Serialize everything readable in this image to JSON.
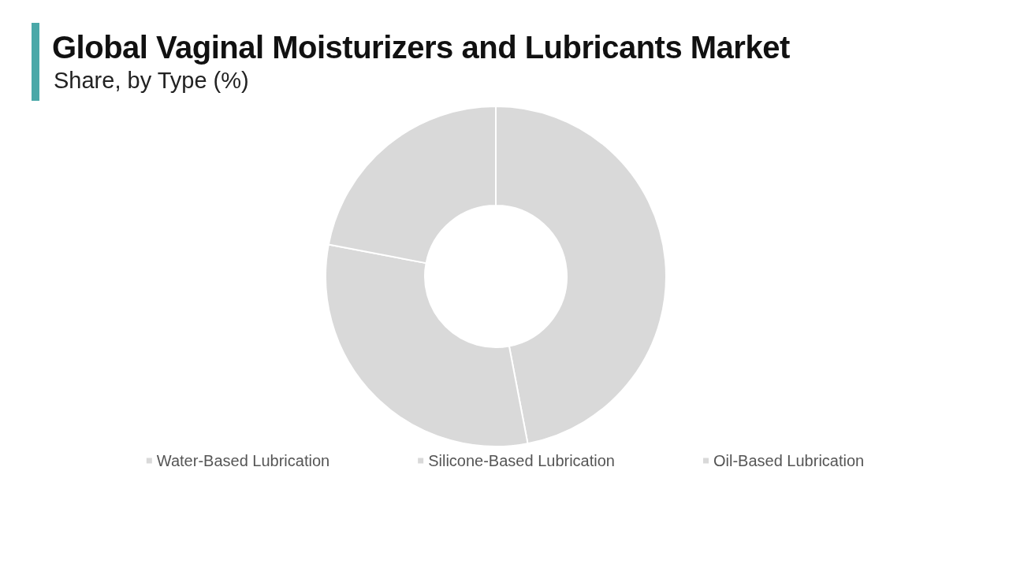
{
  "chart_data": {
    "type": "donut",
    "title": "Global Vaginal Moisturizers and Lubricants Market",
    "subtitle": "Share, by Type (%)",
    "categories": [
      "Water-Based Lubrication",
      "Silicone-Based Lubrication",
      "Oil-Based Lubrication"
    ],
    "values": [
      47,
      31,
      22
    ],
    "colors": [
      "#d9d9d9",
      "#d9d9d9",
      "#d9d9d9"
    ],
    "legend": "bottom"
  }
}
